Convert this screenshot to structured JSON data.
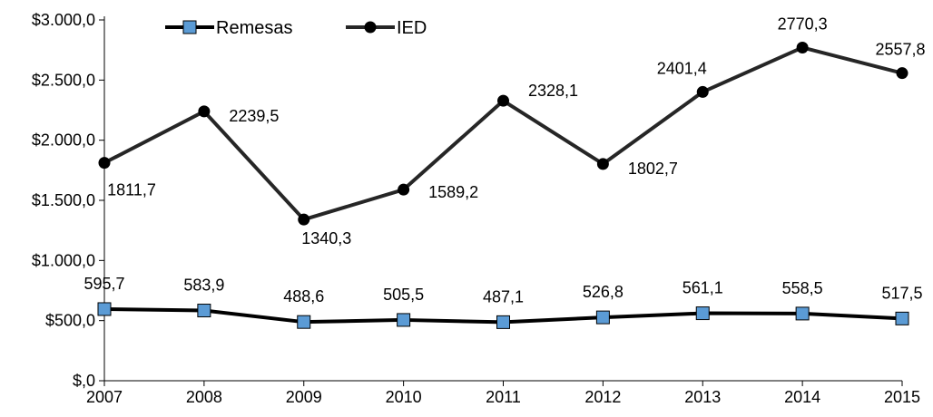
{
  "chart_data": {
    "type": "line",
    "title": "",
    "xlabel": "",
    "ylabel": "",
    "categories": [
      "2007",
      "2008",
      "2009",
      "2010",
      "2011",
      "2012",
      "2013",
      "2014",
      "2015"
    ],
    "ylim": [
      0,
      3000
    ],
    "yticks": [
      0,
      500,
      1000,
      1500,
      2000,
      2500,
      3000
    ],
    "ytick_labels": [
      "$,0",
      "$500,0",
      "$1.000,0",
      "$1.500,0",
      "$2.000,0",
      "$2.500,0",
      "$3.000,0"
    ],
    "grid": false,
    "legend_position": "top-left",
    "series": [
      {
        "name": "Remesas",
        "marker": "square",
        "line_color": "#000000",
        "marker_color": "#5b9bd5",
        "values": [
          595.7,
          583.9,
          488.6,
          505.5,
          487.1,
          526.8,
          561.1,
          558.5,
          517.5
        ],
        "labels": [
          "595,7",
          "583,9",
          "488,6",
          "505,5",
          "487,1",
          "526,8",
          "561,1",
          "558,5",
          "517,5"
        ]
      },
      {
        "name": "IED",
        "marker": "circle",
        "line_color": "#262626",
        "marker_color": "#000000",
        "values": [
          1811.7,
          2239.5,
          1340.3,
          1589.2,
          2328.1,
          1802.7,
          2401.4,
          2770.3,
          2557.8
        ],
        "labels": [
          "1811,7",
          "2239,5",
          "1340,3",
          "1589,2",
          "2328,1",
          "1802,7",
          "2401,4",
          "2770,3",
          "2557,8"
        ]
      }
    ]
  }
}
